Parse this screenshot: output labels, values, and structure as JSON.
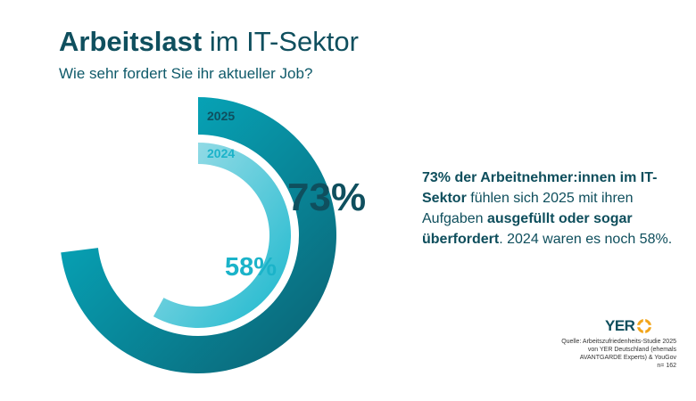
{
  "title": {
    "bold": "Arbeitslast",
    "rest": " im IT-Sektor"
  },
  "subtitle": "Wie sehr fordert Sie ihr aktueller Job?",
  "colors": {
    "dark_navy": "#0f4f5e",
    "ring_2025_light": "#05b8cc",
    "ring_2025_dark": "#0b5f70",
    "ring_2024": "#19b7cd",
    "ring_2024_light": "#a8e1ea",
    "label_2024": "#1bb3c9"
  },
  "chart_data": {
    "type": "donut",
    "series": [
      {
        "name": "2025",
        "value": 73,
        "label": "73%"
      },
      {
        "name": "2024",
        "value": 58,
        "label": "58%"
      }
    ],
    "ylim": [
      0,
      100
    ]
  },
  "description": {
    "p1": "73% der Arbeitnehmer:innen im IT-Sektor",
    "p2": " fühlen sich 2025 mit ihren Aufgaben ",
    "p3": "ausgefüllt oder sogar überfordert",
    "p4": ". 2024 waren es noch 58%."
  },
  "logo": {
    "text": "YER",
    "icon": "yer-logo-icon"
  },
  "source": [
    "Quelle: Arbeitszufriedenheits-Studie 2025",
    "von YER Deutschland (ehemals",
    "AVANTGARDE Experts) & YouGov",
    "n= 162"
  ]
}
